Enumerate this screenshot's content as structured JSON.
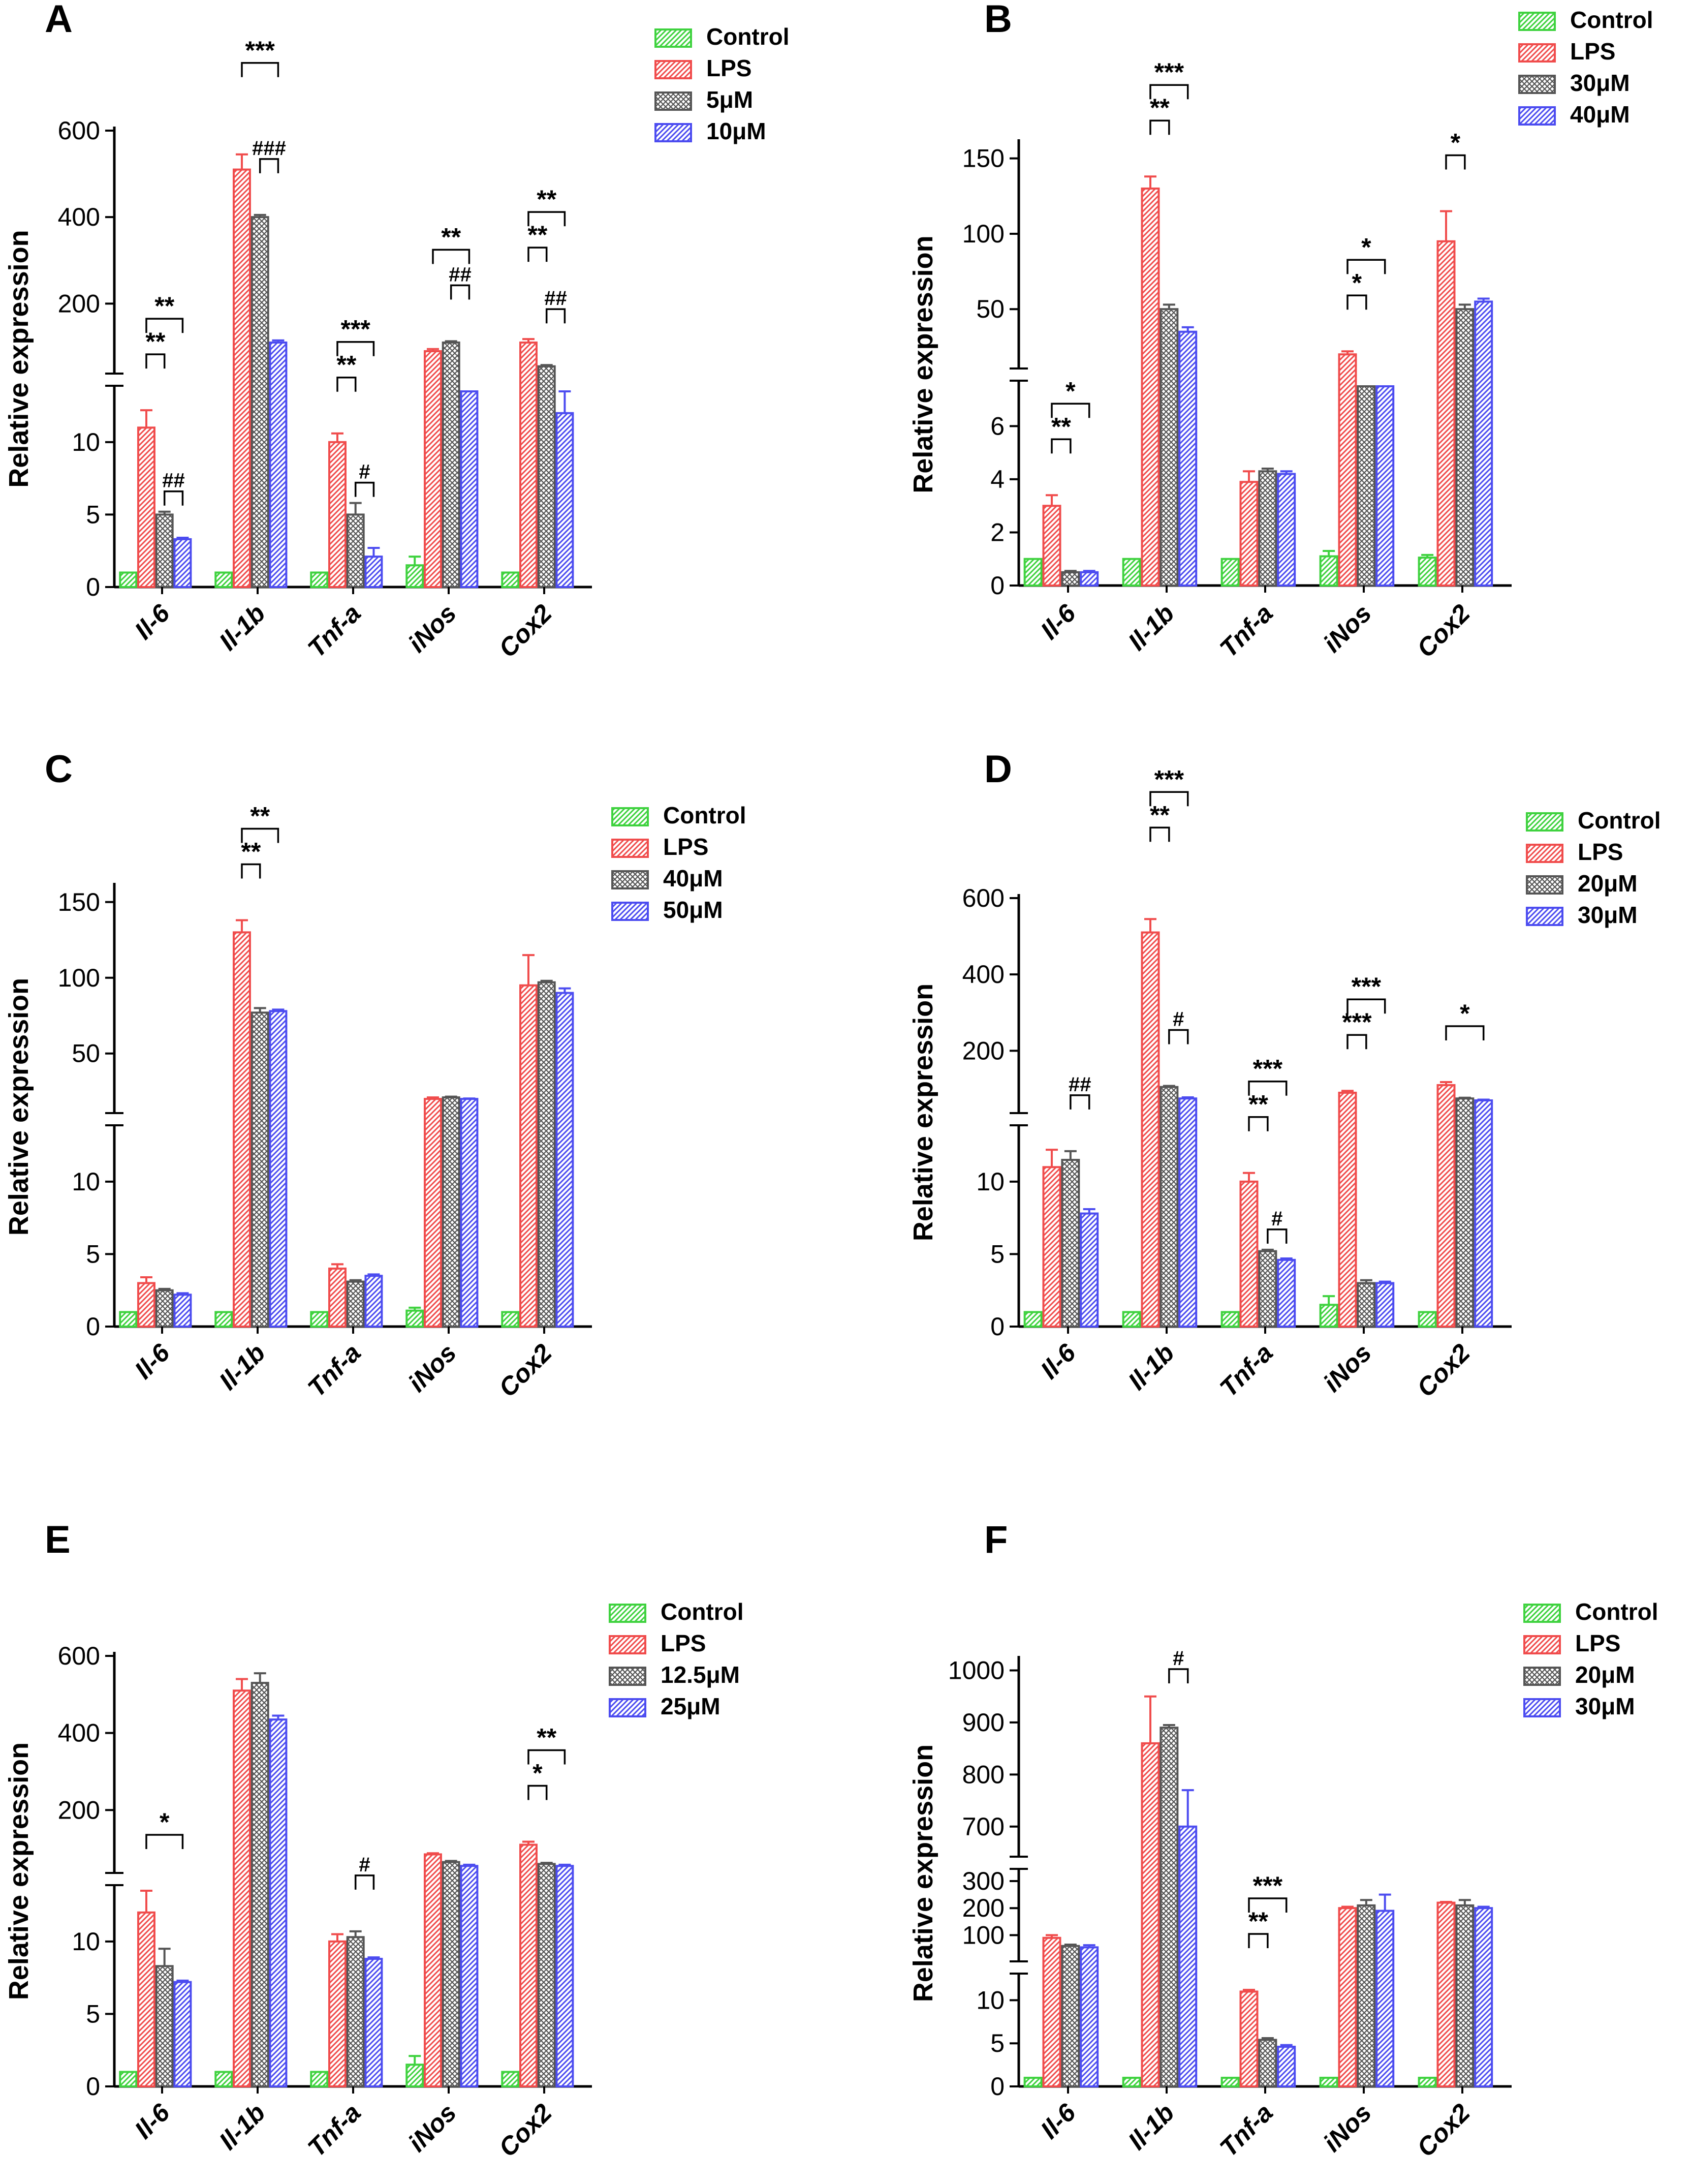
{
  "figure": {
    "title": ""
  },
  "colors": {
    "control": "#3fd23f",
    "lps": "#f04c4c",
    "treat1": "#555555",
    "treat2": "#4c4cf0",
    "axis": "#000000"
  },
  "chart_data": [
    {
      "panel": "A",
      "type": "bar",
      "ylabel": "Relative expression",
      "categories": [
        "Il-6",
        "Il-1b",
        "Tnf-a",
        "iNos",
        "Cox2"
      ],
      "legend": [
        "Control",
        "LPS",
        "5μM",
        "10μM"
      ],
      "series": [
        {
          "name": "Control",
          "values": [
            1,
            1,
            1,
            1.5,
            1
          ],
          "errors": [
            0,
            0,
            0,
            0.6,
            0
          ]
        },
        {
          "name": "LPS",
          "values": [
            11,
            510,
            10,
            90,
            110
          ],
          "errors": [
            1.2,
            35,
            0.6,
            5,
            8
          ]
        },
        {
          "name": "5μM",
          "values": [
            5,
            400,
            5,
            110,
            55
          ],
          "errors": [
            0.2,
            5,
            0.8,
            3,
            3
          ]
        },
        {
          "name": "10μM",
          "values": [
            3.3,
            110,
            2.1,
            30,
            12
          ],
          "errors": [
            0.1,
            5,
            0.6,
            8,
            3
          ]
        }
      ],
      "lower_ticks": [
        "0",
        "5",
        "10"
      ],
      "upper_ticks": [
        "200",
        "400",
        "600"
      ],
      "brackets": [
        {
          "cat": 0,
          "from": 1,
          "to": 2,
          "label": "**",
          "tier": 0
        },
        {
          "cat": 0,
          "from": 1,
          "to": 3,
          "label": "**",
          "tier": 1
        },
        {
          "cat": 0,
          "from": 2,
          "to": 3,
          "label": "##",
          "tier": -1
        },
        {
          "cat": 1,
          "from": 2,
          "to": 3,
          "label": "###",
          "tier": 0
        },
        {
          "cat": 1,
          "from": 1,
          "to": 3,
          "label": "***",
          "tier": 1
        },
        {
          "cat": 2,
          "from": 1,
          "to": 2,
          "label": "**",
          "tier": 0
        },
        {
          "cat": 2,
          "from": 1,
          "to": 3,
          "label": "***",
          "tier": 1
        },
        {
          "cat": 2,
          "from": 2,
          "to": 3,
          "label": "#",
          "tier": -1
        },
        {
          "cat": 3,
          "from": 2,
          "to": 3,
          "label": "##",
          "tier": 0
        },
        {
          "cat": 3,
          "from": 1,
          "to": 3,
          "label": "**",
          "tier": 1
        },
        {
          "cat": 4,
          "from": 2,
          "to": 3,
          "label": "##",
          "tier": 0
        },
        {
          "cat": 4,
          "from": 1,
          "to": 2,
          "label": "**",
          "tier": 1
        },
        {
          "cat": 4,
          "from": 1,
          "to": 3,
          "label": "**",
          "tier": 2
        }
      ]
    },
    {
      "panel": "B",
      "type": "bar",
      "ylabel": "Relative expression",
      "categories": [
        "Il-6",
        "Il-1b",
        "Tnf-a",
        "iNos",
        "Cox2"
      ],
      "legend": [
        "Control",
        "LPS",
        "30μM",
        "40μM"
      ],
      "series": [
        {
          "name": "Control",
          "values": [
            1,
            1,
            1,
            1.1,
            1.05
          ],
          "errors": [
            0,
            0,
            0,
            0.2,
            0.1
          ]
        },
        {
          "name": "LPS",
          "values": [
            3,
            130,
            3.9,
            20,
            95
          ],
          "errors": [
            0.4,
            8,
            0.4,
            2,
            20
          ]
        },
        {
          "name": "30μM",
          "values": [
            0.5,
            50,
            4.3,
            8,
            50
          ],
          "errors": [
            0.05,
            3,
            0.1,
            0.5,
            3
          ]
        },
        {
          "name": "40μM",
          "values": [
            0.5,
            35,
            4.2,
            8,
            55
          ],
          "errors": [
            0.05,
            3,
            0.1,
            0.5,
            2
          ]
        }
      ],
      "lower_ticks": [
        "0",
        "2",
        "4",
        "6"
      ],
      "upper_ticks": [
        "50",
        "100",
        "150"
      ],
      "brackets": [
        {
          "cat": 0,
          "from": 1,
          "to": 2,
          "label": "**",
          "tier": 0
        },
        {
          "cat": 0,
          "from": 1,
          "to": 3,
          "label": "*",
          "tier": 1
        },
        {
          "cat": 1,
          "from": 1,
          "to": 2,
          "label": "**",
          "tier": 0
        },
        {
          "cat": 1,
          "from": 1,
          "to": 3,
          "label": "***",
          "tier": 1
        },
        {
          "cat": 3,
          "from": 1,
          "to": 2,
          "label": "*",
          "tier": 0
        },
        {
          "cat": 3,
          "from": 1,
          "to": 3,
          "label": "*",
          "tier": 1
        },
        {
          "cat": 4,
          "from": 1,
          "to": 2,
          "label": "*",
          "tier": 0
        }
      ]
    },
    {
      "panel": "C",
      "type": "bar",
      "ylabel": "Relative expression",
      "categories": [
        "Il-6",
        "Il-1b",
        "Tnf-a",
        "iNos",
        "Cox2"
      ],
      "legend": [
        "Control",
        "LPS",
        "40μM",
        "50μM"
      ],
      "series": [
        {
          "name": "Control",
          "values": [
            1,
            1,
            1,
            1.1,
            1
          ],
          "errors": [
            0,
            0,
            0,
            0.2,
            0
          ]
        },
        {
          "name": "LPS",
          "values": [
            3,
            130,
            4,
            20,
            95
          ],
          "errors": [
            0.4,
            8,
            0.3,
            1,
            20
          ]
        },
        {
          "name": "40μM",
          "values": [
            2.5,
            77,
            3.1,
            21,
            97
          ],
          "errors": [
            0.1,
            3,
            0.1,
            0.5,
            1
          ]
        },
        {
          "name": "50μM",
          "values": [
            2.2,
            78,
            3.5,
            20,
            90
          ],
          "errors": [
            0.1,
            1,
            0.1,
            0.3,
            3
          ]
        }
      ],
      "lower_ticks": [
        "0",
        "5",
        "10"
      ],
      "upper_ticks": [
        "50",
        "100",
        "150"
      ],
      "brackets": [
        {
          "cat": 1,
          "from": 1,
          "to": 2,
          "label": "**",
          "tier": 0
        },
        {
          "cat": 1,
          "from": 1,
          "to": 3,
          "label": "**",
          "tier": 1
        }
      ]
    },
    {
      "panel": "D",
      "type": "bar",
      "ylabel": "Relative expression",
      "categories": [
        "Il-6",
        "Il-1b",
        "Tnf-a",
        "iNos",
        "Cox2"
      ],
      "legend": [
        "Control",
        "LPS",
        "20μM",
        "30μM"
      ],
      "series": [
        {
          "name": "Control",
          "values": [
            1,
            1,
            1,
            1.5,
            1
          ],
          "errors": [
            0,
            0,
            0,
            0.6,
            0
          ]
        },
        {
          "name": "LPS",
          "values": [
            11,
            510,
            10,
            90,
            110
          ],
          "errors": [
            1.2,
            35,
            0.6,
            5,
            8
          ]
        },
        {
          "name": "20μM",
          "values": [
            11.5,
            105,
            5.2,
            3,
            75
          ],
          "errors": [
            0.6,
            3,
            0.1,
            0.2,
            2
          ]
        },
        {
          "name": "30μM",
          "values": [
            7.8,
            75,
            4.6,
            3,
            70
          ],
          "errors": [
            0.3,
            3,
            0.1,
            0.1,
            2
          ]
        }
      ],
      "lower_ticks": [
        "0",
        "5",
        "10"
      ],
      "upper_ticks": [
        "200",
        "400",
        "600"
      ],
      "brackets": [
        {
          "cat": 0,
          "from": 2,
          "to": 3,
          "label": "##",
          "tier": 0
        },
        {
          "cat": 1,
          "from": 2,
          "to": 3,
          "label": "#",
          "tier": 0
        },
        {
          "cat": 1,
          "from": 1,
          "to": 2,
          "label": "**",
          "tier": 1
        },
        {
          "cat": 1,
          "from": 1,
          "to": 3,
          "label": "***",
          "tier": 2
        },
        {
          "cat": 2,
          "from": 2,
          "to": 3,
          "label": "#",
          "tier": -1
        },
        {
          "cat": 2,
          "from": 1,
          "to": 2,
          "label": "**",
          "tier": 0
        },
        {
          "cat": 2,
          "from": 1,
          "to": 3,
          "label": "***",
          "tier": 1
        },
        {
          "cat": 3,
          "from": 1,
          "to": 2,
          "label": "***",
          "tier": 0
        },
        {
          "cat": 3,
          "from": 1,
          "to": 3,
          "label": "***",
          "tier": 1
        },
        {
          "cat": 4,
          "from": 1,
          "to": 3,
          "label": "*",
          "tier": 0
        }
      ]
    },
    {
      "panel": "E",
      "type": "bar",
      "ylabel": "Relative expression",
      "categories": [
        "Il-6",
        "Il-1b",
        "Tnf-a",
        "iNos",
        "Cox2"
      ],
      "legend": [
        "Control",
        "LPS",
        "12.5μM",
        "25μM"
      ],
      "series": [
        {
          "name": "Control",
          "values": [
            1,
            1,
            1,
            1.5,
            1
          ],
          "errors": [
            0,
            0,
            0,
            0.6,
            0
          ]
        },
        {
          "name": "LPS",
          "values": [
            12,
            510,
            10,
            85,
            110
          ],
          "errors": [
            1.5,
            30,
            0.5,
            3,
            8
          ]
        },
        {
          "name": "12.5μM",
          "values": [
            8.3,
            530,
            10.3,
            65,
            60
          ],
          "errors": [
            1.2,
            25,
            0.4,
            3,
            3
          ]
        },
        {
          "name": "25μM",
          "values": [
            7.2,
            435,
            8.8,
            55,
            55
          ],
          "errors": [
            0.1,
            10,
            0.1,
            3,
            3
          ]
        }
      ],
      "lower_ticks": [
        "0",
        "5",
        "10"
      ],
      "upper_ticks": [
        "200",
        "400",
        "600"
      ],
      "brackets": [
        {
          "cat": 0,
          "from": 1,
          "to": 3,
          "label": "*",
          "tier": 0
        },
        {
          "cat": 2,
          "from": 2,
          "to": 3,
          "label": "#",
          "tier": 0
        },
        {
          "cat": 4,
          "from": 1,
          "to": 2,
          "label": "*",
          "tier": 0
        },
        {
          "cat": 4,
          "from": 1,
          "to": 3,
          "label": "**",
          "tier": 1
        }
      ]
    },
    {
      "panel": "F",
      "type": "bar",
      "ylabel": "Relative expression",
      "categories": [
        "Il-6",
        "Il-1b",
        "Tnf-a",
        "iNos",
        "Cox2"
      ],
      "legend": [
        "Control",
        "LPS",
        "20μM",
        "30μM"
      ],
      "series": [
        {
          "name": "Control",
          "values": [
            1,
            1,
            1,
            1,
            1
          ],
          "errors": [
            0,
            0,
            0,
            0,
            0
          ]
        },
        {
          "name": "LPS",
          "values": [
            90,
            860,
            11,
            200,
            220
          ],
          "errors": [
            10,
            90,
            0.2,
            5,
            3
          ]
        },
        {
          "name": "20μM",
          "values": [
            60,
            890,
            5.4,
            210,
            210
          ],
          "errors": [
            5,
            5,
            0.2,
            20,
            20
          ]
        },
        {
          "name": "30μM",
          "values": [
            55,
            700,
            4.6,
            190,
            200
          ],
          "errors": [
            8,
            70,
            0.2,
            60,
            5
          ]
        }
      ],
      "lower_ticks": [
        "0",
        "5",
        "10"
      ],
      "upper_ticks": [
        "100",
        "200",
        "300"
      ],
      "top_ticks": [
        "700",
        "800",
        "900",
        "1000"
      ],
      "brackets": [
        {
          "cat": 1,
          "from": 2,
          "to": 3,
          "label": "#",
          "tier": 0
        },
        {
          "cat": 2,
          "from": 1,
          "to": 2,
          "label": "**",
          "tier": 0
        },
        {
          "cat": 2,
          "from": 1,
          "to": 3,
          "label": "***",
          "tier": 1
        }
      ]
    }
  ]
}
